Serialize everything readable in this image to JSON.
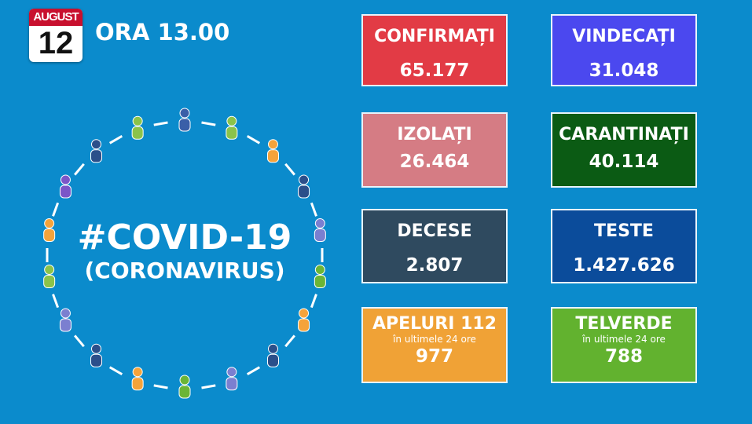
{
  "header": {
    "month": "AUGUST",
    "day": "12",
    "time": "ORA 13.00"
  },
  "title": {
    "main": "#COVID-19",
    "sub": "(CORONAVIRUS)"
  },
  "stats": [
    {
      "label": "CONFIRMAȚI",
      "value": "65.177",
      "color": "#e23b45"
    },
    {
      "label": "VINDECAȚI",
      "value": "31.048",
      "color": "#4b48ef"
    },
    {
      "label": "IZOLAȚI",
      "value": "26.464",
      "color": "#d57c84"
    },
    {
      "label": "CARANTINAȚI",
      "value": "40.114",
      "color": "#0b5b14"
    },
    {
      "label": "DECESE",
      "value": "2.807",
      "color": "#2f4a5f"
    },
    {
      "label": "TESTE",
      "value": "1.427.626",
      "color": "#0b4c9b"
    },
    {
      "label": "APELURI 112",
      "sub": "în ultimele 24 ore",
      "value": "977",
      "color": "#f0a236"
    },
    {
      "label": "TELVERDE",
      "sub": "în ultimele 24 ore",
      "value": "788",
      "color": "#62b22f"
    }
  ]
}
